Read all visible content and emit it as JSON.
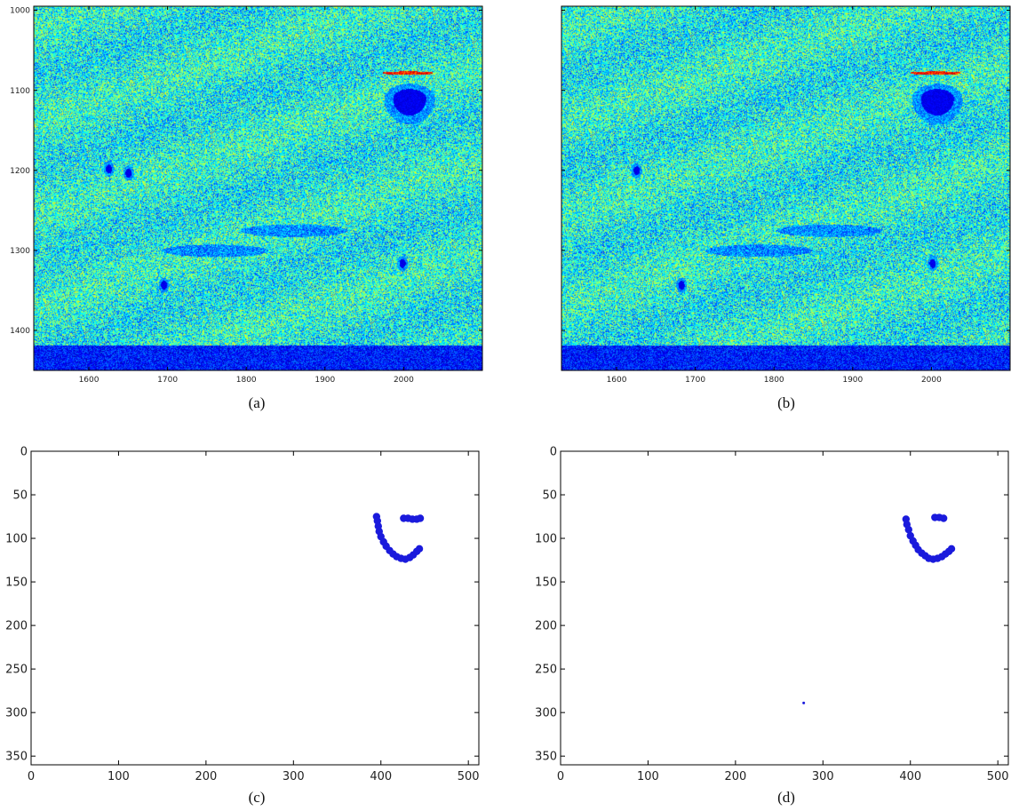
{
  "figure": {
    "panels": [
      {
        "caption": "(a)",
        "chart_data": {
          "type": "heatmap",
          "colormap": "jet",
          "xlim": [
            1530,
            2100
          ],
          "ylim": [
            1450,
            995
          ],
          "xticks": [
            1600,
            1700,
            1800,
            1900,
            2000
          ],
          "yticks": [
            1000,
            1100,
            1200,
            1300,
            1400
          ],
          "xticklabels": [
            "1600",
            "1700",
            "1800",
            "1900",
            "2000"
          ],
          "yticklabels": [
            "1000",
            "1100",
            "1200",
            "1300",
            "1400"
          ],
          "low_band_ystart": 1418,
          "features": [
            {
              "kind": "blob",
              "x": 2007,
              "y": 1110,
              "rx": 28,
              "ry": 28,
              "value": "low"
            },
            {
              "kind": "arc",
              "x": 2005,
              "y": 1078,
              "value": "high"
            },
            {
              "kind": "spot",
              "x": 1625,
              "y": 1198,
              "value": "low"
            },
            {
              "kind": "spot",
              "x": 1650,
              "y": 1203,
              "value": "low"
            },
            {
              "kind": "spot",
              "x": 1695,
              "y": 1343,
              "value": "low"
            },
            {
              "kind": "spot",
              "x": 1998,
              "y": 1316,
              "value": "low"
            },
            {
              "kind": "streak",
              "x": 1760,
              "y": 1300,
              "value": "low"
            },
            {
              "kind": "streak",
              "x": 1860,
              "y": 1275,
              "value": "low"
            }
          ]
        }
      },
      {
        "caption": "(b)",
        "chart_data": {
          "type": "heatmap",
          "colormap": "jet",
          "xlim": [
            1530,
            2100
          ],
          "ylim": [
            1450,
            995
          ],
          "xticks": [
            1600,
            1700,
            1800,
            1900,
            2000
          ],
          "yticks": [
            1000,
            1100,
            1200,
            1300,
            1400
          ],
          "xticklabels": [
            "1600",
            "1700",
            "1800",
            "1900",
            "2000"
          ],
          "yticklabels": [],
          "low_band_ystart": 1418,
          "features": [
            {
              "kind": "blob",
              "x": 2007,
              "y": 1110,
              "rx": 28,
              "ry": 28,
              "value": "low"
            },
            {
              "kind": "arc",
              "x": 2005,
              "y": 1078,
              "value": "high"
            },
            {
              "kind": "spot",
              "x": 1625,
              "y": 1200,
              "value": "low"
            },
            {
              "kind": "spot",
              "x": 1682,
              "y": 1343,
              "value": "low"
            },
            {
              "kind": "spot",
              "x": 2001,
              "y": 1316,
              "value": "low"
            },
            {
              "kind": "streak",
              "x": 1780,
              "y": 1300,
              "value": "low"
            },
            {
              "kind": "streak",
              "x": 1870,
              "y": 1275,
              "value": "low"
            }
          ]
        }
      },
      {
        "caption": "(c)",
        "chart_data": {
          "type": "scatter",
          "xlim": [
            0,
            512
          ],
          "ylim": [
            360,
            0
          ],
          "xticks": [
            0,
            100,
            200,
            300,
            400,
            500
          ],
          "yticks": [
            0,
            50,
            100,
            150,
            200,
            250,
            300,
            350
          ],
          "xticklabels": [
            "0",
            "100",
            "200",
            "300",
            "400",
            "500"
          ],
          "yticklabels": [
            "0",
            "50",
            "100",
            "150",
            "200",
            "250",
            "300",
            "350"
          ],
          "marker_color": "#1a1adc",
          "points": [
            [
              395,
              75
            ],
            [
              396,
              80
            ],
            [
              397,
              86
            ],
            [
              398,
              92
            ],
            [
              400,
              98
            ],
            [
              403,
              104
            ],
            [
              406,
              109
            ],
            [
              410,
              114
            ],
            [
              414,
              118
            ],
            [
              418,
              121
            ],
            [
              423,
              123
            ],
            [
              428,
              124
            ],
            [
              433,
              122
            ],
            [
              437,
              119
            ],
            [
              441,
              115
            ],
            [
              444,
              112
            ],
            [
              426,
              77
            ],
            [
              431,
              77
            ],
            [
              436,
              78
            ],
            [
              441,
              78
            ],
            [
              445,
              77
            ]
          ]
        }
      },
      {
        "caption": "(d)",
        "chart_data": {
          "type": "scatter",
          "xlim": [
            0,
            512
          ],
          "ylim": [
            360,
            0
          ],
          "xticks": [
            0,
            100,
            200,
            300,
            400,
            500
          ],
          "yticks": [
            0,
            50,
            100,
            150,
            200,
            250,
            300,
            350
          ],
          "xticklabels": [
            "0",
            "100",
            "200",
            "300",
            "400",
            "500"
          ],
          "yticklabels": [
            "0",
            "50",
            "100",
            "150",
            "200",
            "250",
            "300",
            "350"
          ],
          "marker_color": "#1a1adc",
          "points": [
            [
              395,
              78
            ],
            [
              396,
              84
            ],
            [
              398,
              90
            ],
            [
              400,
              97
            ],
            [
              403,
              103
            ],
            [
              406,
              108
            ],
            [
              409,
              113
            ],
            [
              413,
              117
            ],
            [
              417,
              120
            ],
            [
              421,
              123
            ],
            [
              426,
              124
            ],
            [
              431,
              123
            ],
            [
              436,
              121
            ],
            [
              440,
              118
            ],
            [
              444,
              115
            ],
            [
              447,
              112
            ],
            [
              428,
              76
            ],
            [
              433,
              76
            ],
            [
              438,
              77
            ],
            [
              278,
              289
            ]
          ]
        }
      }
    ]
  }
}
